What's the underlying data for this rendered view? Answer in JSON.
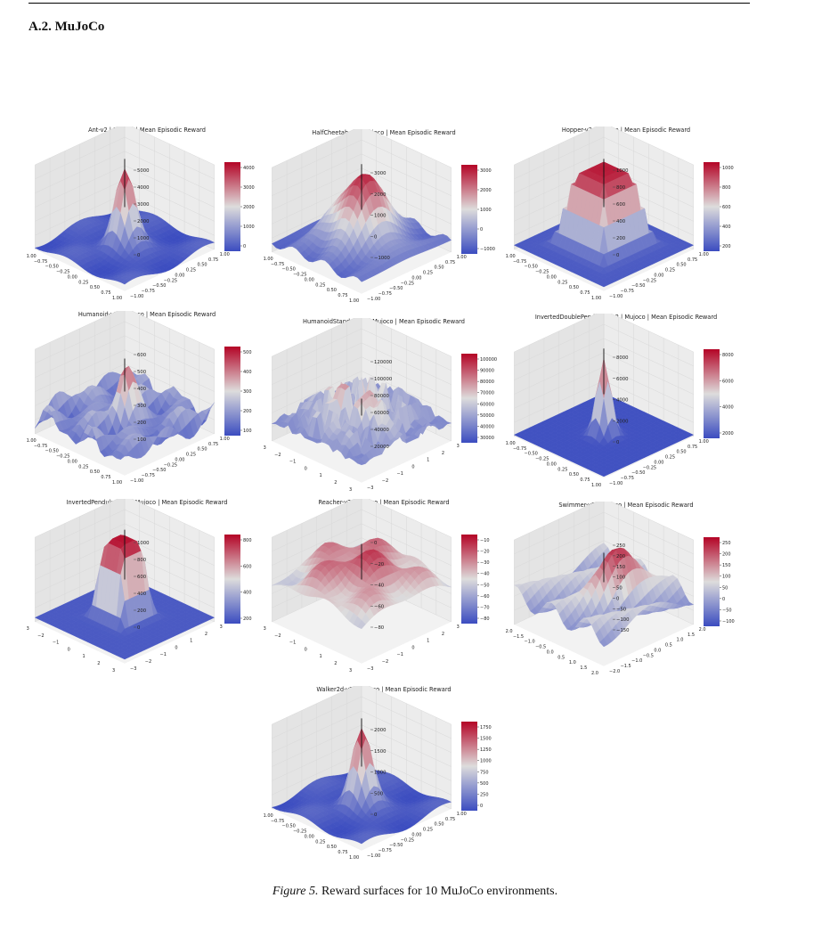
{
  "section": "A.2. MuJoCo",
  "caption": {
    "label": "Figure 5.",
    "text": " Reward surfaces for 10 MuJoCo environments."
  },
  "colors": {
    "low": "#3b4cc0",
    "mid": "#dddcdc",
    "high": "#b40426"
  },
  "panels": [
    {
      "title": "Ant-v2 | Mujoco | Mean Episodic Reward",
      "shape": "peak",
      "ticks": "unit",
      "zticks": [
        "5000",
        "4000",
        "3000",
        "2000",
        "1000",
        "0"
      ],
      "cticks": [
        "4000",
        "3000",
        "2000",
        "1000",
        "0"
      ]
    },
    {
      "title": "HalfCheetah-v2 | Mujoco | Mean Episodic Reward",
      "shape": "dome",
      "ticks": "unit",
      "zticks": [
        "3000",
        "2000",
        "1000",
        "0",
        "−1000"
      ],
      "cticks": [
        "3000",
        "2000",
        "1000",
        "0",
        "−1000"
      ]
    },
    {
      "title": "Hopper-v2 | Mujoco | Mean Episodic Reward",
      "shape": "plateau",
      "ticks": "unit",
      "zticks": [
        "1000",
        "800",
        "600",
        "400",
        "200",
        "0"
      ],
      "cticks": [
        "1000",
        "800",
        "600",
        "400",
        "200"
      ]
    },
    {
      "title": "Humanoid-v2 | Mujoco | Mean Episodic Reward",
      "shape": "bumpy",
      "ticks": "unit",
      "zticks": [
        "600",
        "500",
        "400",
        "300",
        "200",
        "100"
      ],
      "cticks": [
        "500",
        "400",
        "300",
        "200",
        "100"
      ]
    },
    {
      "title": "HumanoidStandup-v2 | Mujoco | Mean Episodic Reward",
      "shape": "spiky",
      "ticks": "three",
      "zticks": [
        "120000",
        "100000",
        "80000",
        "60000",
        "40000",
        "20000"
      ],
      "cticks": [
        "100000",
        "90000",
        "80000",
        "70000",
        "60000",
        "50000",
        "40000",
        "30000"
      ]
    },
    {
      "title": "InvertedDoublePendulum-v2 | Mujoco | Mean Episodic Reward",
      "shape": "narrow",
      "ticks": "unit",
      "zticks": [
        "8000",
        "6000",
        "4000",
        "2000",
        "0"
      ],
      "cticks": [
        "8000",
        "6000",
        "4000",
        "2000"
      ]
    },
    {
      "title": "InvertedPendulum-v2 | Mujoco | Mean Episodic Reward",
      "shape": "box",
      "ticks": "three",
      "zticks": [
        "1000",
        "800",
        "600",
        "400",
        "200",
        "0"
      ],
      "cticks": [
        "800",
        "600",
        "400",
        "200"
      ]
    },
    {
      "title": "Reacher-v2 | Mujoco | Mean Episodic Reward",
      "shape": "inverse",
      "ticks": "three",
      "zticks": [
        "0",
        "−20",
        "−40",
        "−60",
        "−80"
      ],
      "cticks": [
        "−10",
        "−20",
        "−30",
        "−40",
        "−50",
        "−60",
        "−70",
        "−80"
      ]
    },
    {
      "title": "Swimmer-v2 | Mujoco | Mean Episodic Reward",
      "shape": "ridge",
      "ticks": "two",
      "zticks": [
        "250",
        "200",
        "150",
        "100",
        "50",
        "0",
        "−50",
        "−100",
        "−150"
      ],
      "cticks": [
        "250",
        "200",
        "150",
        "100",
        "50",
        "0",
        "−50",
        "−100"
      ]
    },
    {
      "title": "Walker2d-v2 | Mujoco | Mean Episodic Reward",
      "shape": "peak",
      "ticks": "unit",
      "zticks": [
        "2000",
        "1500",
        "1000",
        "500",
        "0"
      ],
      "cticks": [
        "1750",
        "1500",
        "1250",
        "1000",
        "750",
        "500",
        "250",
        "0"
      ]
    }
  ],
  "tick_sets": {
    "unit": [
      "−1.00",
      "−0.75",
      "−0.50",
      "−0.25",
      "0.00",
      "0.25",
      "0.50",
      "0.75",
      "1.00"
    ],
    "three": [
      "−3",
      "−2",
      "−1",
      "0",
      "1",
      "2",
      "3"
    ],
    "two": [
      "−2.0",
      "−1.5",
      "−1.0",
      "−0.5",
      "0.0",
      "0.5",
      "1.0",
      "1.5",
      "2.0"
    ]
  }
}
